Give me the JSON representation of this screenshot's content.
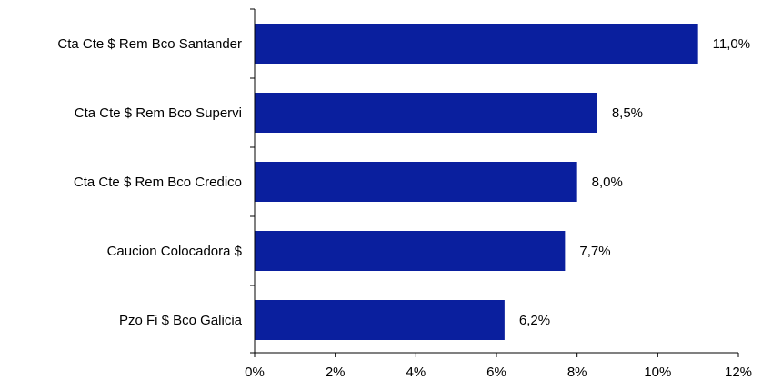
{
  "chart_data": {
    "type": "bar",
    "orientation": "horizontal",
    "categories": [
      "Cta Cte $ Rem Bco Santander",
      "Cta Cte $ Rem Bco Supervi",
      "Cta Cte $ Rem Bco Credico",
      "Caucion Colocadora $",
      "Pzo Fi $ Bco Galicia"
    ],
    "values": [
      11.0,
      8.5,
      8.0,
      7.7,
      6.2
    ],
    "data_labels": [
      "11,0%",
      "8,5%",
      "8,0%",
      "7,7%",
      "6,2%"
    ],
    "xlim": [
      0,
      12
    ],
    "xticks": [
      0,
      2,
      4,
      6,
      8,
      10,
      12
    ],
    "xtick_labels": [
      "0%",
      "2%",
      "4%",
      "6%",
      "8%",
      "10%",
      "12%"
    ],
    "title": "",
    "xlabel": "",
    "ylabel": "",
    "grid": false,
    "legend": "none",
    "bar_color": "#0a1f9e"
  }
}
